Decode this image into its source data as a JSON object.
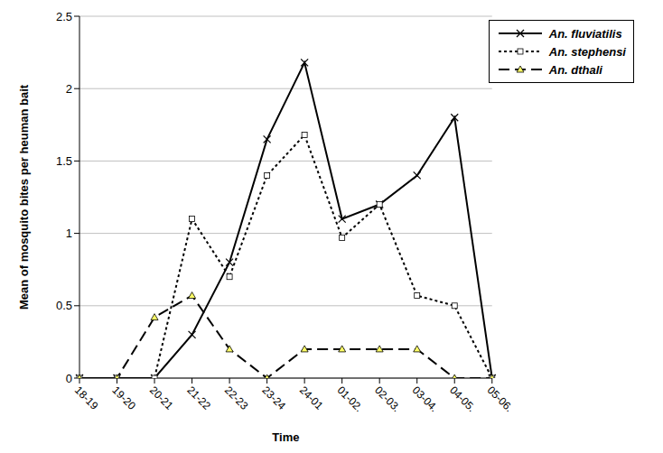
{
  "chart_data": {
    "type": "line",
    "x_label": "Time",
    "y_label": "Mean of mosquito bites per heuman bait",
    "categories": [
      "18-19",
      "19-20",
      "20-21",
      "21-22",
      "22-23",
      "23-24",
      "24-01",
      "01-02.",
      "02-03.",
      "03-04.",
      "04-05.",
      "05-06."
    ],
    "series": [
      {
        "name": "An. fluviatilis",
        "color": "#000000",
        "marker": "x",
        "line_style": "solid",
        "values": [
          0,
          0,
          0,
          0.3,
          0.8,
          1.65,
          2.18,
          1.1,
          1.2,
          1.4,
          1.8,
          0
        ]
      },
      {
        "name": "An. stephensi",
        "color": "#000000",
        "marker": "square",
        "line_style": "dotted",
        "values": [
          0,
          0,
          0,
          1.1,
          0.7,
          1.4,
          1.68,
          0.97,
          1.2,
          0.57,
          0.5,
          0
        ]
      },
      {
        "name": "An. dthali",
        "color": "#000000",
        "marker": "triangle",
        "line_style": "dashed",
        "values": [
          0,
          0,
          0.42,
          0.57,
          0.2,
          0,
          0.2,
          0.2,
          0.2,
          0.2,
          0,
          0
        ]
      }
    ],
    "ylim": [
      0,
      2.5
    ],
    "yticks": [
      0,
      0.5,
      1,
      1.5,
      2,
      2.5
    ],
    "grid": true,
    "legend": "upper right"
  }
}
